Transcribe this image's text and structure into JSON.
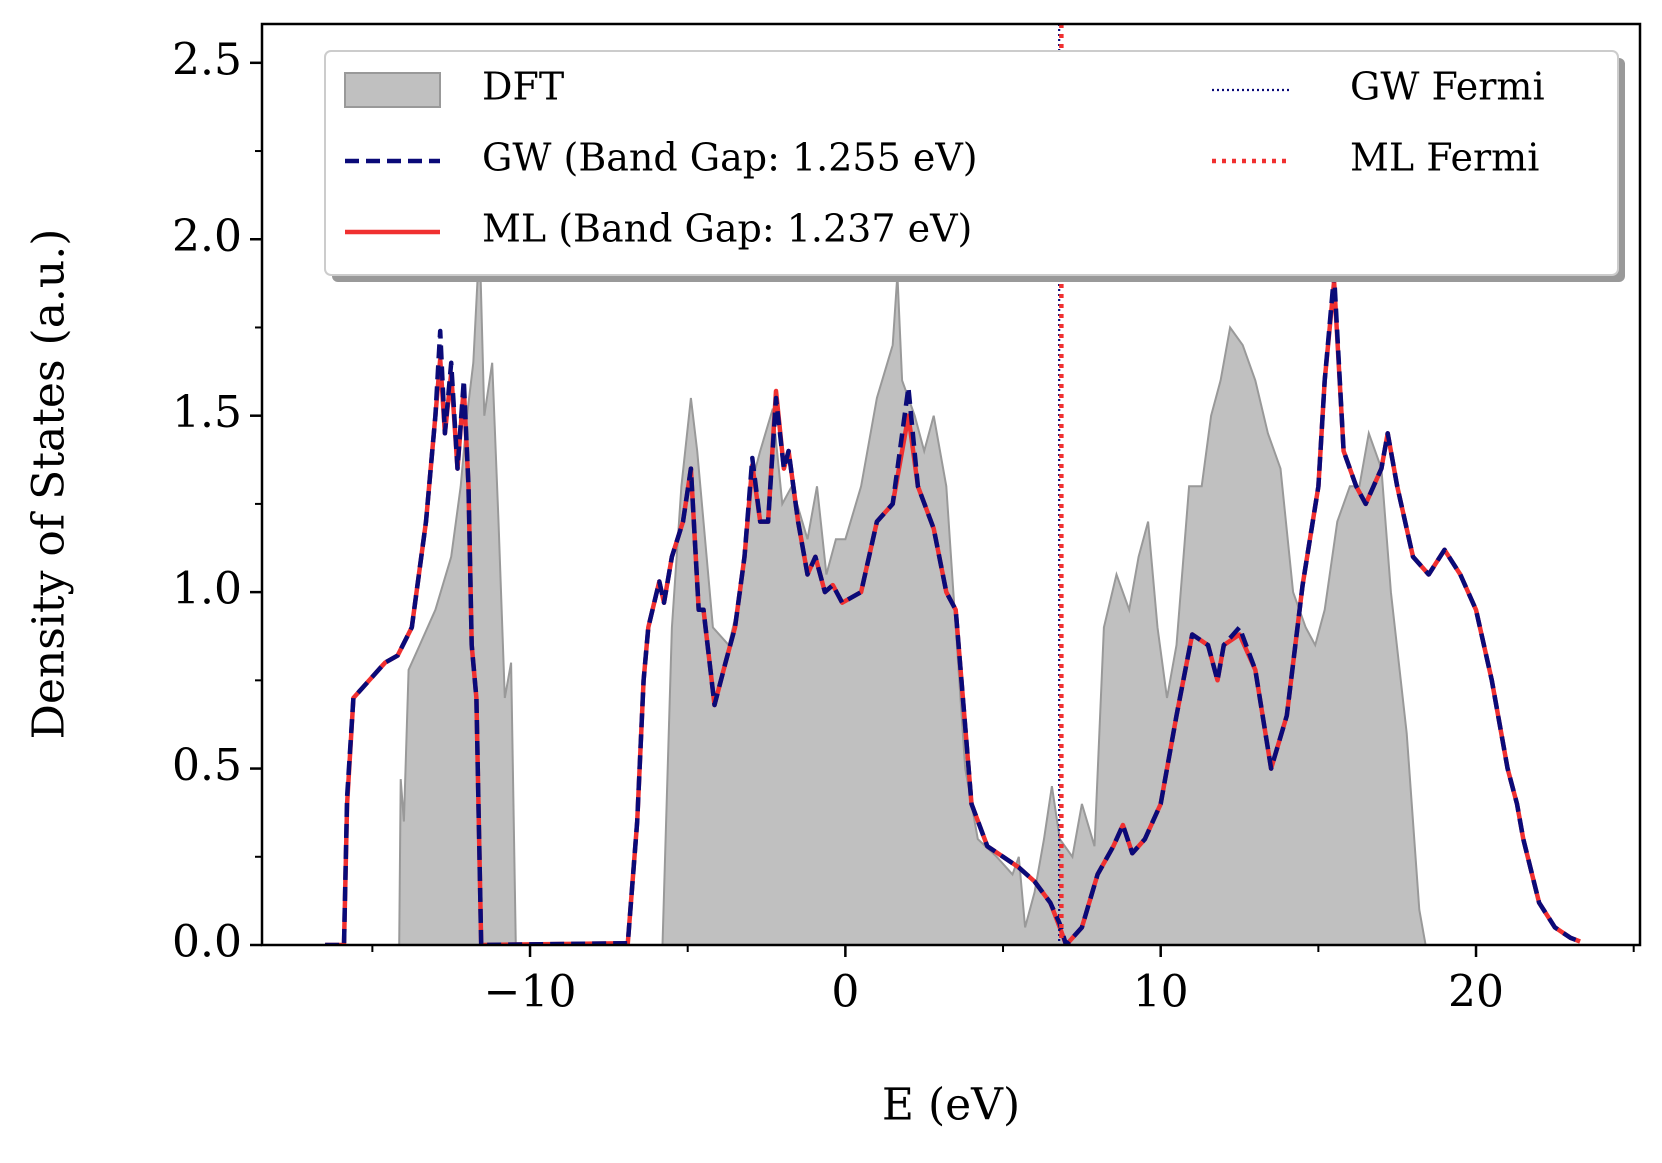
{
  "chart_data": {
    "type": "line",
    "xlabel": "E (eV)",
    "ylabel": "Density of States (a.u.)",
    "xlim": [
      -18.5,
      25.2
    ],
    "ylim": [
      0,
      2.61
    ],
    "xticks": [
      {
        "value": -10,
        "label": "−10"
      },
      0,
      10,
      20
    ],
    "xticks_minor": [
      -15,
      -5,
      5,
      15,
      25
    ],
    "yticks": [
      {
        "value": 0,
        "label": "0.0"
      },
      {
        "value": 0.5,
        "label": "0.5"
      },
      {
        "value": 1,
        "label": "1.0"
      },
      {
        "value": 1.5,
        "label": "1.5"
      },
      {
        "value": 2,
        "label": "2.0"
      },
      {
        "value": 2.5,
        "label": "2.5"
      }
    ],
    "yticks_minor": [
      0.25,
      0.75,
      1.25,
      1.75,
      2.25
    ],
    "legend": "upper center",
    "series": [
      {
        "name": "DFT",
        "style": "fill",
        "color": "#c0c0c0",
        "x": [
          -14.15,
          -14.1,
          -14.0,
          -13.85,
          -13.5,
          -13.0,
          -12.5,
          -12.2,
          -12.0,
          -11.8,
          -11.6,
          -11.45,
          -11.2,
          -11.0,
          -10.8,
          -10.6,
          -10.45,
          -5.8,
          -5.7,
          -5.5,
          -5.2,
          -4.9,
          -4.7,
          -4.5,
          -4.2,
          -3.7,
          -3.3,
          -3.0,
          -2.7,
          -2.3,
          -2.0,
          -1.7,
          -1.2,
          -0.9,
          -0.6,
          -0.3,
          0.0,
          0.5,
          1.0,
          1.5,
          1.65,
          1.8,
          2.2,
          2.5,
          2.8,
          3.2,
          3.5,
          3.8,
          4.2,
          4.8,
          5.3,
          5.5,
          5.7,
          6.0,
          6.3,
          6.55,
          6.8,
          7.2,
          7.5,
          7.9,
          8.2,
          8.6,
          9.0,
          9.3,
          9.6,
          9.9,
          10.2,
          10.5,
          10.9,
          11.3,
          11.6,
          11.9,
          12.2,
          12.6,
          13.0,
          13.4,
          13.8,
          14.2,
          14.6,
          14.9,
          15.2,
          15.6,
          16.0,
          16.3,
          16.6,
          17.0,
          17.3,
          17.8,
          18.2,
          18.4
        ],
        "values": [
          0,
          0.47,
          0.35,
          0.78,
          0.85,
          0.95,
          1.1,
          1.3,
          1.5,
          1.65,
          2.0,
          1.5,
          1.65,
          1.2,
          0.7,
          0.8,
          0,
          0,
          0.3,
          0.9,
          1.3,
          1.55,
          1.4,
          1.2,
          0.9,
          0.85,
          1.0,
          1.3,
          1.4,
          1.52,
          1.25,
          1.3,
          1.15,
          1.3,
          1.05,
          1.15,
          1.15,
          1.3,
          1.55,
          1.7,
          1.9,
          1.6,
          1.5,
          1.4,
          1.5,
          1.3,
          0.9,
          0.5,
          0.3,
          0.25,
          0.2,
          0.25,
          0.05,
          0.15,
          0.3,
          0.45,
          0.3,
          0.25,
          0.4,
          0.28,
          0.9,
          1.05,
          0.95,
          1.1,
          1.2,
          0.9,
          0.7,
          0.85,
          1.3,
          1.3,
          1.5,
          1.6,
          1.75,
          1.7,
          1.6,
          1.45,
          1.35,
          1.0,
          0.9,
          0.85,
          0.95,
          1.2,
          1.3,
          1.3,
          1.45,
          1.35,
          1.0,
          0.6,
          0.1,
          0
        ]
      },
      {
        "name": "ML (Band Gap: 1.237 eV)",
        "style": "solid",
        "color": "#f03030",
        "x": [
          -16.5,
          -15.9,
          -15.8,
          -15.6,
          -14.6,
          -14.2,
          -13.75,
          -13.3,
          -13.0,
          -12.85,
          -12.7,
          -12.5,
          -12.3,
          -12.1,
          -11.95,
          -11.85,
          -11.7,
          -11.55,
          -6.9,
          -6.6,
          -6.4,
          -6.25,
          -5.9,
          -5.75,
          -5.5,
          -5.15,
          -4.9,
          -4.65,
          -4.5,
          -4.15,
          -3.8,
          -3.5,
          -3.2,
          -2.95,
          -2.7,
          -2.45,
          -2.2,
          -1.95,
          -1.8,
          -1.5,
          -1.2,
          -0.95,
          -0.65,
          -0.4,
          -0.1,
          0.5,
          1.0,
          1.5,
          2.0,
          2.3,
          2.8,
          3.2,
          3.5,
          4.0,
          4.5,
          5.0,
          5.5,
          6.0,
          6.5,
          6.8,
          7.0,
          7.5,
          8.0,
          8.5,
          8.8,
          9.1,
          9.5,
          10.0,
          10.5,
          11.0,
          11.5,
          11.8,
          12.0,
          12.5,
          13.0,
          13.5,
          14.0,
          14.5,
          15.0,
          15.2,
          15.5,
          15.8,
          16.2,
          16.5,
          17.0,
          17.2,
          17.5,
          18.0,
          18.5,
          19.0,
          19.5,
          20.0,
          20.5,
          21.0,
          21.3,
          21.5,
          22.0,
          22.5,
          23.0,
          23.3
        ],
        "values": [
          0,
          0,
          0.4,
          0.7,
          0.8,
          0.82,
          0.9,
          1.2,
          1.5,
          1.66,
          1.45,
          1.62,
          1.35,
          1.58,
          1.3,
          0.85,
          0.7,
          0,
          0.005,
          0.35,
          0.75,
          0.9,
          1.03,
          0.97,
          1.1,
          1.2,
          1.35,
          0.95,
          0.95,
          0.68,
          0.8,
          0.9,
          1.1,
          1.36,
          1.2,
          1.2,
          1.57,
          1.35,
          1.4,
          1.2,
          1.05,
          1.1,
          1.0,
          1.02,
          0.97,
          1.0,
          1.2,
          1.25,
          1.5,
          1.3,
          1.18,
          1.0,
          0.95,
          0.4,
          0.28,
          0.25,
          0.22,
          0.18,
          0.12,
          0.05,
          0,
          0.05,
          0.2,
          0.28,
          0.34,
          0.26,
          0.3,
          0.4,
          0.65,
          0.88,
          0.85,
          0.75,
          0.85,
          0.88,
          0.78,
          0.5,
          0.65,
          1.02,
          1.3,
          1.6,
          1.88,
          1.4,
          1.3,
          1.25,
          1.35,
          1.45,
          1.3,
          1.1,
          1.05,
          1.12,
          1.05,
          0.95,
          0.75,
          0.5,
          0.4,
          0.3,
          0.12,
          0.05,
          0.02,
          0.01
        ]
      },
      {
        "name": "GW (Band Gap: 1.255 eV)",
        "style": "dashed",
        "color": "#0a0a78",
        "x": [
          -16.5,
          -15.9,
          -15.8,
          -15.6,
          -14.6,
          -14.2,
          -13.75,
          -13.3,
          -13.0,
          -12.85,
          -12.7,
          -12.5,
          -12.3,
          -12.1,
          -11.95,
          -11.85,
          -11.7,
          -11.55,
          -6.9,
          -6.6,
          -6.4,
          -6.25,
          -5.9,
          -5.75,
          -5.5,
          -5.15,
          -4.9,
          -4.65,
          -4.5,
          -4.15,
          -3.8,
          -3.5,
          -3.2,
          -2.95,
          -2.7,
          -2.45,
          -2.2,
          -1.95,
          -1.8,
          -1.5,
          -1.2,
          -0.95,
          -0.65,
          -0.4,
          -0.1,
          0.5,
          1.0,
          1.5,
          2.0,
          2.3,
          2.8,
          3.2,
          3.5,
          4.0,
          4.5,
          5.0,
          5.5,
          6.0,
          6.5,
          6.8,
          7.0,
          7.5,
          8.0,
          8.5,
          8.8,
          9.1,
          9.5,
          10.0,
          10.5,
          11.0,
          11.5,
          11.8,
          12.0,
          12.5,
          13.0,
          13.5,
          14.0,
          14.5,
          15.0,
          15.2,
          15.5,
          15.8,
          16.2,
          16.5,
          17.0,
          17.2,
          17.5,
          18.0,
          18.5,
          19.0,
          19.5,
          20.0,
          20.5,
          21.0,
          21.3,
          21.5,
          22.0,
          22.5,
          23.0,
          23.3
        ],
        "values": [
          0,
          0,
          0.42,
          0.7,
          0.8,
          0.82,
          0.9,
          1.2,
          1.5,
          1.74,
          1.45,
          1.65,
          1.35,
          1.6,
          1.3,
          0.85,
          0.7,
          0,
          0.005,
          0.35,
          0.75,
          0.9,
          1.03,
          0.97,
          1.1,
          1.2,
          1.35,
          0.95,
          0.95,
          0.68,
          0.8,
          0.9,
          1.1,
          1.38,
          1.2,
          1.2,
          1.55,
          1.35,
          1.4,
          1.2,
          1.05,
          1.1,
          1.0,
          1.02,
          0.97,
          1.0,
          1.2,
          1.25,
          1.58,
          1.3,
          1.18,
          1.0,
          0.95,
          0.4,
          0.28,
          0.25,
          0.22,
          0.18,
          0.12,
          0.06,
          0,
          0.05,
          0.2,
          0.28,
          0.34,
          0.26,
          0.3,
          0.4,
          0.65,
          0.88,
          0.85,
          0.75,
          0.85,
          0.9,
          0.78,
          0.5,
          0.65,
          1.02,
          1.3,
          1.6,
          1.9,
          1.4,
          1.3,
          1.25,
          1.35,
          1.45,
          1.3,
          1.1,
          1.05,
          1.12,
          1.05,
          0.95,
          0.75,
          0.5,
          0.4,
          0.3,
          0.12,
          0.05,
          0.02,
          0.01
        ]
      }
    ],
    "vlines": [
      {
        "name": "GW Fermi",
        "x": 6.78,
        "color": "#0a0a78",
        "style": "dotted-fine"
      },
      {
        "name": "ML Fermi",
        "x": 6.85,
        "color": "#f03030",
        "style": "dotted"
      }
    ]
  }
}
